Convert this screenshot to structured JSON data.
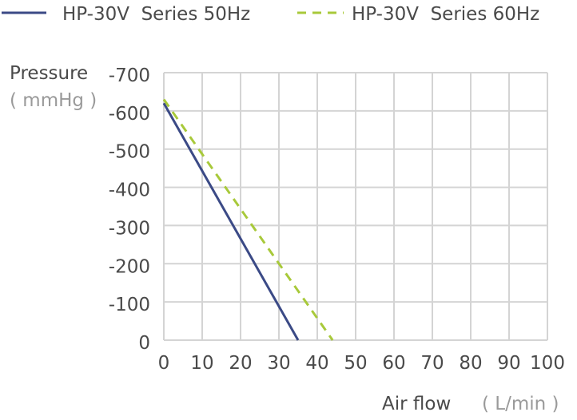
{
  "chart_data": {
    "type": "line",
    "title": "",
    "xlabel": "Air flow",
    "xunit": "( L/min )",
    "ylabel": "Pressure",
    "yunit": "( mmHg )",
    "xlim": [
      0,
      100
    ],
    "ylim": [
      0,
      -700
    ],
    "grid": true,
    "legend_position": "top",
    "x_ticks": [
      0,
      10,
      20,
      30,
      40,
      50,
      60,
      70,
      80,
      90,
      100
    ],
    "x_tick_labels": [
      "0",
      "10",
      "20",
      "30",
      "40",
      "50",
      "60",
      "70",
      "80",
      "90",
      "100"
    ],
    "y_ticks": [
      0,
      -100,
      -200,
      -300,
      -400,
      -500,
      -600,
      -700
    ],
    "y_tick_labels": [
      "0",
      "-100",
      "-200",
      "-300",
      "-400",
      "-500",
      "-600",
      "-700"
    ],
    "series": [
      {
        "name": "HP-30V  Series 50Hz",
        "style": "solid",
        "color": "#3b4a86",
        "points": [
          [
            0,
            -620
          ],
          [
            35,
            0
          ]
        ]
      },
      {
        "name": "HP-30V  Series 60Hz",
        "style": "dashed",
        "color": "#a8c93a",
        "points": [
          [
            0,
            -630
          ],
          [
            44,
            0
          ]
        ]
      }
    ]
  }
}
